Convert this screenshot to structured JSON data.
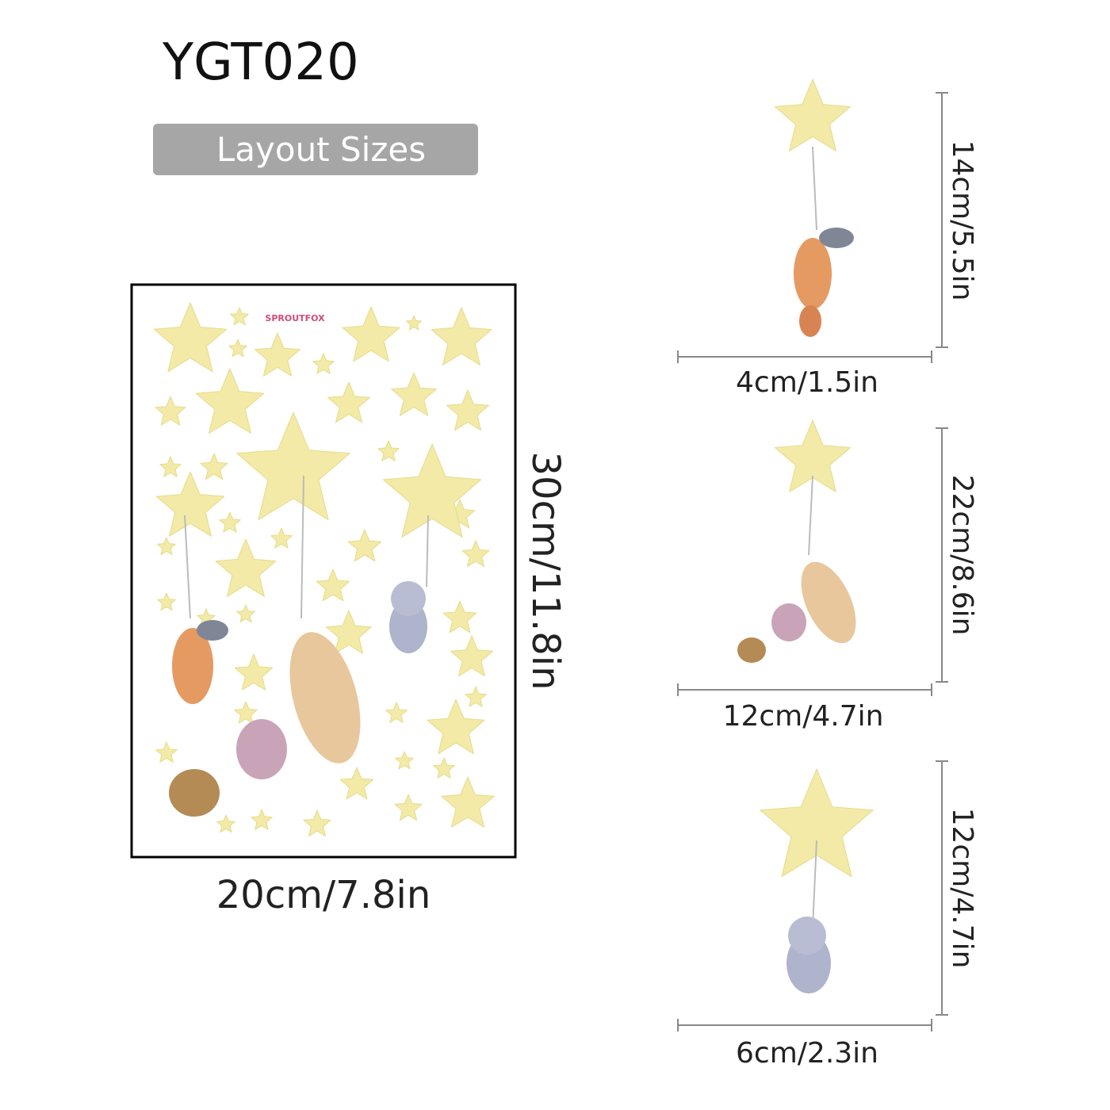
{
  "header": {
    "title": "YGT020",
    "badge": "Layout Sizes"
  },
  "sheet": {
    "brand": "SPROUTFOX",
    "height": "30cm/11.8in",
    "width": "20cm/7.8in"
  },
  "items": [
    {
      "height": "14cm/5.5in",
      "width": "4cm/1.5in"
    },
    {
      "height": "22cm/8.6in",
      "width": "12cm/4.7in"
    },
    {
      "height": "12cm/4.7in",
      "width": "6cm/2.3in"
    }
  ]
}
